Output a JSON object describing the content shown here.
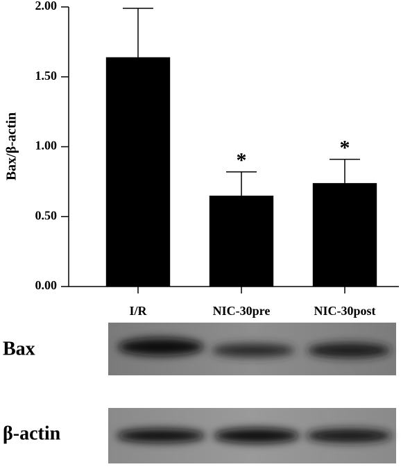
{
  "chart_data": {
    "type": "bar",
    "ylabel": "Bax/β-actin",
    "categories": [
      "I/R",
      "NIC-30pre",
      "NIC-30post"
    ],
    "values": [
      1.64,
      0.65,
      0.74
    ],
    "errors": [
      0.35,
      0.17,
      0.17
    ],
    "significance": [
      null,
      "*",
      "*"
    ],
    "color": "#000000",
    "ylim": [
      0,
      2
    ],
    "yticks": [
      {
        "value": 0,
        "label": "0.00"
      },
      {
        "value": 0.5,
        "label": "0.50"
      },
      {
        "value": 1,
        "label": "1.00"
      },
      {
        "value": 1.5,
        "label": "1.50"
      },
      {
        "value": 2,
        "label": "2.00"
      }
    ],
    "grid": false
  },
  "blots": [
    {
      "label": "Bax"
    },
    {
      "label": "β-actin"
    }
  ]
}
